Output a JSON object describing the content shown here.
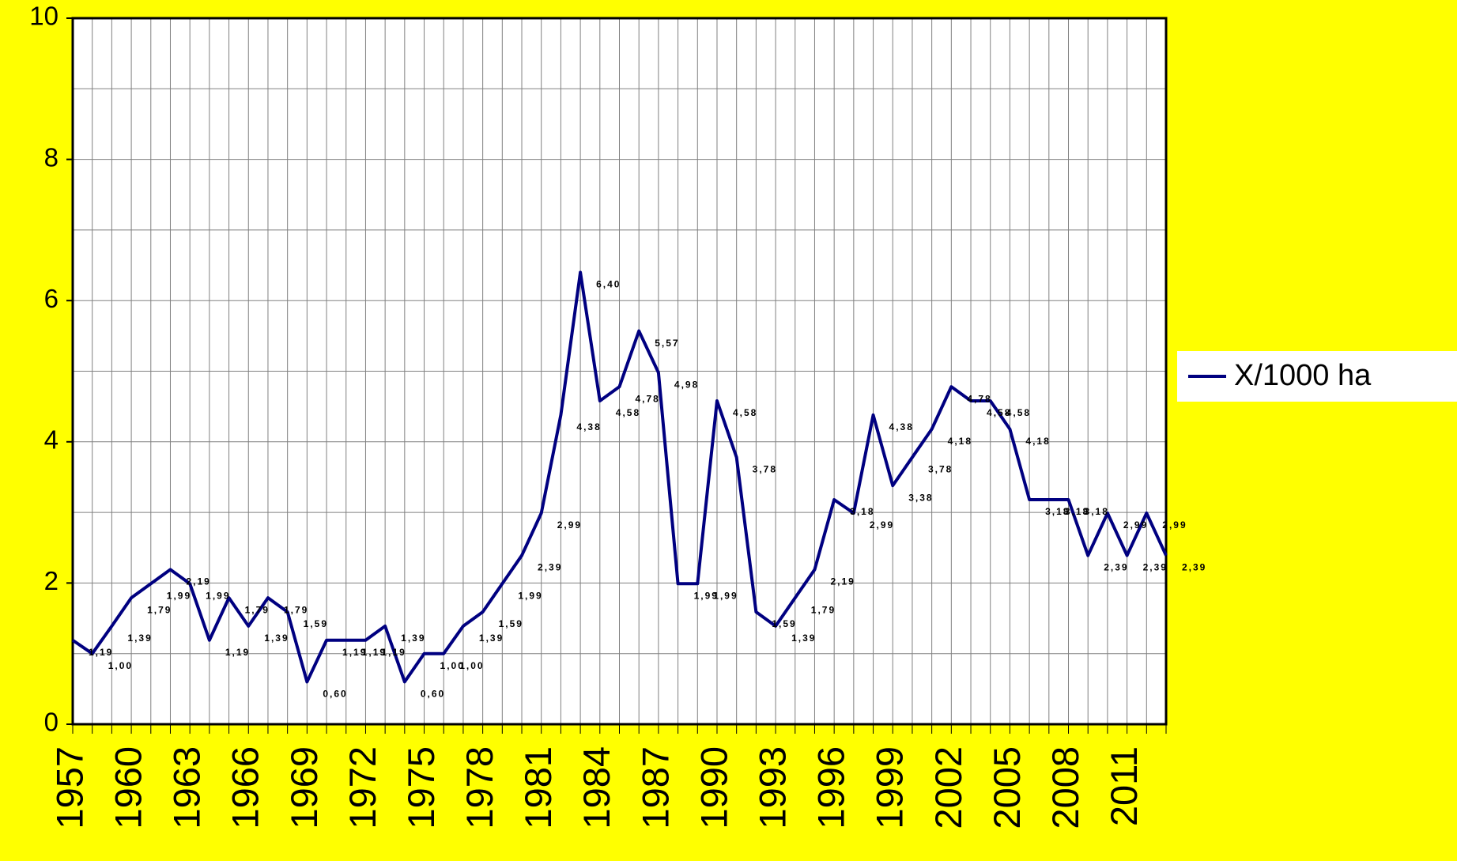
{
  "chart_data": {
    "type": "line",
    "categories": [
      "1957",
      null,
      null,
      "1960",
      null,
      null,
      "1963",
      null,
      null,
      "1966",
      null,
      null,
      "1969",
      null,
      null,
      "1972",
      null,
      null,
      "1975",
      null,
      null,
      "1978",
      null,
      null,
      "1981",
      null,
      null,
      "1984",
      null,
      null,
      "1987",
      null,
      null,
      "1990",
      null,
      null,
      "1993",
      null,
      null,
      "1996",
      null,
      null,
      "1999",
      null,
      null,
      "2002",
      null,
      null,
      "2005",
      null,
      null,
      "2008",
      null,
      null,
      "2011",
      null,
      null
    ],
    "series": [
      {
        "name": "X/1000 ha",
        "color": "#000080",
        "values": [
          1.19,
          1.0,
          1.39,
          1.79,
          1.99,
          2.19,
          1.99,
          1.19,
          1.79,
          1.39,
          1.79,
          1.59,
          0.6,
          1.19,
          1.19,
          1.19,
          1.39,
          0.6,
          1.0,
          1.0,
          1.39,
          1.59,
          1.99,
          2.39,
          2.99,
          4.38,
          6.4,
          4.58,
          4.78,
          5.57,
          4.98,
          1.99,
          1.99,
          4.58,
          3.78,
          1.59,
          1.39,
          1.79,
          2.19,
          3.18,
          2.99,
          4.38,
          3.38,
          3.78,
          4.18,
          4.78,
          4.58,
          4.58,
          4.18,
          3.18,
          3.18,
          3.18,
          2.39,
          2.99,
          2.39,
          2.99,
          2.39
        ],
        "value_labels": [
          "1,19",
          "1,00",
          "1,39",
          "1,79",
          "1,99",
          "2,19",
          "1,99",
          "1,19",
          "1,79",
          "1,39",
          "1,79",
          "1,59",
          "0,60",
          "1,19",
          "1,19",
          "1,19",
          "1,39",
          "0,60",
          "1,00",
          "1,00",
          "1,39",
          "1,59",
          "1,99",
          "2,39",
          "2,99",
          "4,38",
          "6,40",
          "4,58",
          "4,78",
          "5,57",
          "4,98",
          "1,99",
          "1,99",
          "4,58",
          "3,78",
          "1,59",
          "1,39",
          "1,79",
          "2,19",
          "3,18",
          "2,99",
          "4,38",
          "3,38",
          "3,78",
          "4,18",
          "4,78",
          "4,58",
          "4,58",
          "4,18",
          "3,18",
          "3,18",
          "3,18",
          "2,39",
          "2,99",
          "2,39",
          "2,99",
          "2,39"
        ]
      }
    ],
    "ylim": [
      0,
      10
    ],
    "yticks": [
      0,
      2,
      4,
      6,
      8,
      10
    ],
    "yminor_ticks": [
      1,
      3,
      5,
      7,
      9
    ],
    "grid": true,
    "legend": "right",
    "background": "#ffff00",
    "plot_background": "#ffffff"
  }
}
